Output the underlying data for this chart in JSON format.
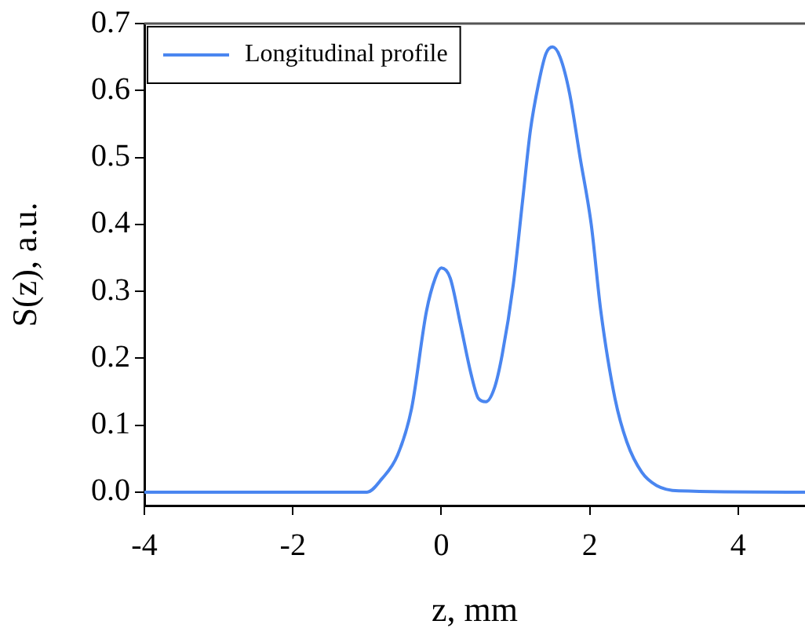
{
  "chart_data": {
    "type": "line",
    "xlabel": "z, mm",
    "ylabel": "S(z), a.u.",
    "x": [
      -4,
      -1.0,
      -0.8,
      -0.59,
      -0.4,
      -0.2,
      -0.08,
      0,
      0.12,
      0.26,
      0.4,
      0.5,
      0.6,
      0.72,
      0.82,
      0.97,
      1.1,
      1.2,
      1.31,
      1.41,
      1.5,
      1.6,
      1.73,
      1.87,
      2.02,
      2.15,
      2.34,
      2.5,
      2.7,
      2.9,
      3.2,
      4.9
    ],
    "series": [
      {
        "name": "Longitudinal profile",
        "color": "#4a86f0",
        "values": [
          0,
          0,
          0.02,
          0.055,
          0.125,
          0.27,
          0.32,
          0.335,
          0.32,
          0.25,
          0.177,
          0.14,
          0.135,
          0.157,
          0.205,
          0.31,
          0.44,
          0.54,
          0.61,
          0.655,
          0.665,
          0.65,
          0.595,
          0.5,
          0.4,
          0.27,
          0.14,
          0.075,
          0.03,
          0.01,
          0.002,
          0
        ]
      }
    ],
    "xlim": [
      -4,
      4.9
    ],
    "xticks": [
      -4,
      -2,
      0,
      2,
      4
    ],
    "ylim": [
      -0.02,
      0.7
    ],
    "yticks": [
      {
        "value": 0,
        "label": "0.0"
      },
      0.1,
      0.2,
      0.3,
      0.4,
      0.5,
      0.6,
      0.7
    ],
    "grid": false,
    "legend": "top left",
    "marker": "none",
    "line_style": "solid"
  }
}
